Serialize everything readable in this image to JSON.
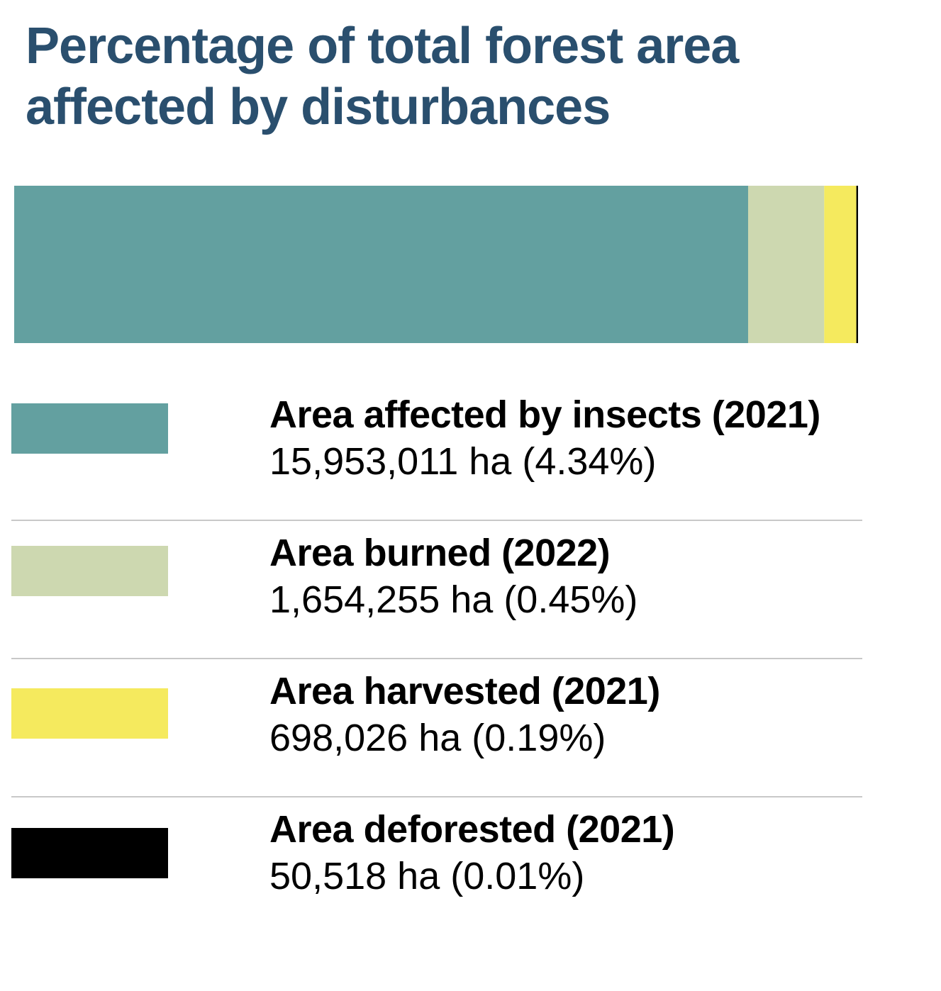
{
  "chart_data": {
    "type": "bar",
    "orientation": "horizontal-stacked",
    "title_lines": [
      "Percentage of total forest area",
      "affected by disturbances"
    ],
    "xlabel": "",
    "ylabel": "",
    "grid": false,
    "legend_placement": "bottom",
    "series": [
      {
        "name": "Area affected by insects (2021)",
        "hectares": "15,953,011 ha",
        "percent_label": "(4.34%)",
        "value": 4.34,
        "color": "#63a0a0"
      },
      {
        "name": "Area burned (2022)",
        "hectares": "1,654,255 ha",
        "percent_label": "(0.45%)",
        "value": 0.45,
        "color": "#cdd8b0"
      },
      {
        "name": "Area harvested (2021)",
        "hectares": "698,026 ha",
        "percent_label": "(0.19%)",
        "value": 0.19,
        "color": "#f5ea5e"
      },
      {
        "name": "Area deforested (2021)",
        "hectares": "50,518 ha",
        "percent_label": "(0.01%)",
        "value": 0.01,
        "color": "#000000"
      }
    ]
  }
}
